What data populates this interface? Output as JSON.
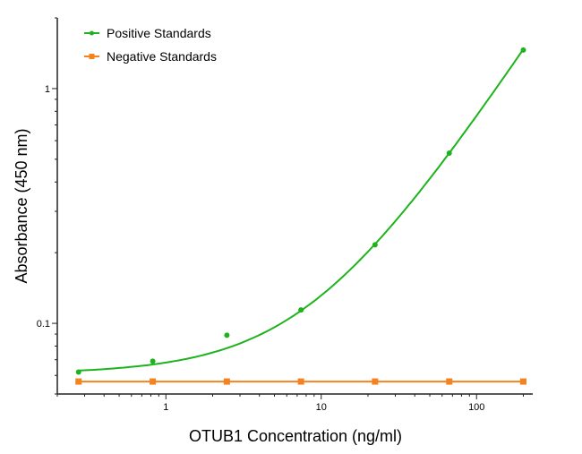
{
  "chart_data": {
    "type": "scatter",
    "title": "",
    "xlabel": "OTUB1 Concentration (ng/ml)",
    "ylabel": "Absorbance (450 nm)",
    "x_scale": "log",
    "y_scale": "log",
    "xlim": [
      0.2,
      230
    ],
    "ylim": [
      0.05,
      2
    ],
    "x_ticks": [
      1,
      10,
      100
    ],
    "x_tick_labels": [
      "1",
      "10",
      "100"
    ],
    "y_ticks": [
      0.1,
      1
    ],
    "y_tick_labels": [
      "0.1",
      "1"
    ],
    "grid": false,
    "legend_position": "top-left",
    "series": [
      {
        "name": "Positive Standards",
        "color": "#1db31d",
        "marker": "circle",
        "fitted_curve": true,
        "x": [
          0.274,
          0.823,
          2.47,
          7.41,
          22.2,
          66.7,
          200
        ],
        "y": [
          0.062,
          0.069,
          0.089,
          0.114,
          0.216,
          0.531,
          1.46
        ]
      },
      {
        "name": "Negative Standards",
        "color": "#f5821f",
        "marker": "square",
        "fitted_curve": false,
        "x": [
          0.274,
          0.823,
          2.47,
          7.41,
          22.2,
          66.7,
          200
        ],
        "y": [
          0.0565,
          0.0565,
          0.0565,
          0.0565,
          0.0565,
          0.0565,
          0.0565
        ]
      }
    ]
  }
}
